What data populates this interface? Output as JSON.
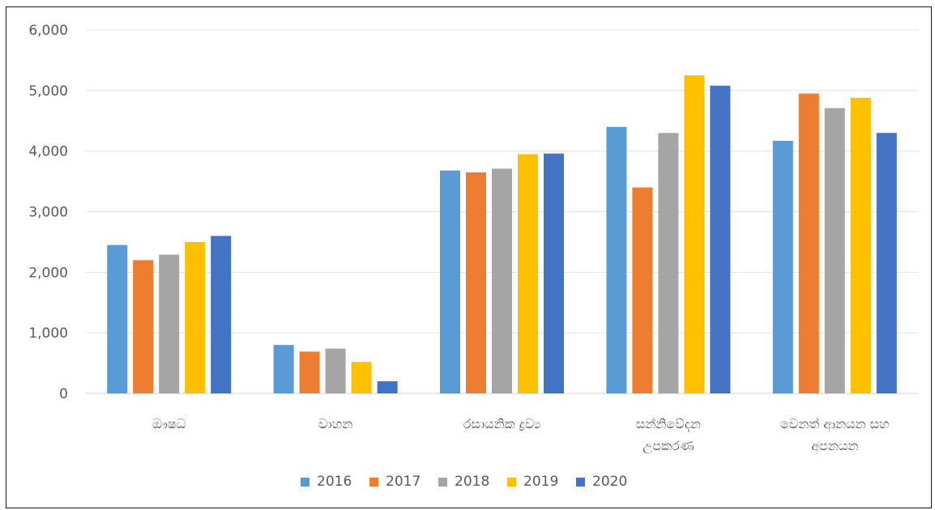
{
  "chart_data": {
    "type": "bar",
    "title": "",
    "xlabel": "",
    "ylabel": "",
    "categories": [
      "ඖෂධ",
      "වාහන",
      "රසායනික ද්‍රව්‍ය",
      "සන්නිවේදන උපකරණ",
      "වෙනත් ආනයන සහ අපනයන"
    ],
    "category_lines": [
      [
        "ඖෂධ"
      ],
      [
        "වාහන"
      ],
      [
        "රසායනික ද්‍රව්‍ය"
      ],
      [
        "සන්නිවේදන",
        "උපකරණ"
      ],
      [
        "වෙනත් ආනයන සහ",
        "අපනයන"
      ]
    ],
    "series": [
      {
        "name": "2016",
        "color": "#5b9bd5",
        "values": [
          2450,
          800,
          3680,
          4400,
          4170
        ]
      },
      {
        "name": "2017",
        "color": "#ed7d31",
        "values": [
          2200,
          690,
          3650,
          3400,
          4950
        ]
      },
      {
        "name": "2018",
        "color": "#a5a5a5",
        "values": [
          2290,
          740,
          3710,
          4300,
          4710
        ]
      },
      {
        "name": "2019",
        "color": "#ffc000",
        "values": [
          2500,
          520,
          3950,
          5250,
          4880
        ]
      },
      {
        "name": "2020",
        "color": "#4472c4",
        "values": [
          2600,
          200,
          3960,
          5080,
          4300
        ]
      }
    ],
    "ylim": [
      0,
      6000
    ],
    "yticks": [
      0,
      1000,
      2000,
      3000,
      4000,
      5000,
      6000
    ],
    "ytick_labels": [
      "0",
      "1,000",
      "2,000",
      "3,000",
      "4,000",
      "5,000",
      "6,000"
    ],
    "grid": true,
    "legend_position": "bottom"
  }
}
